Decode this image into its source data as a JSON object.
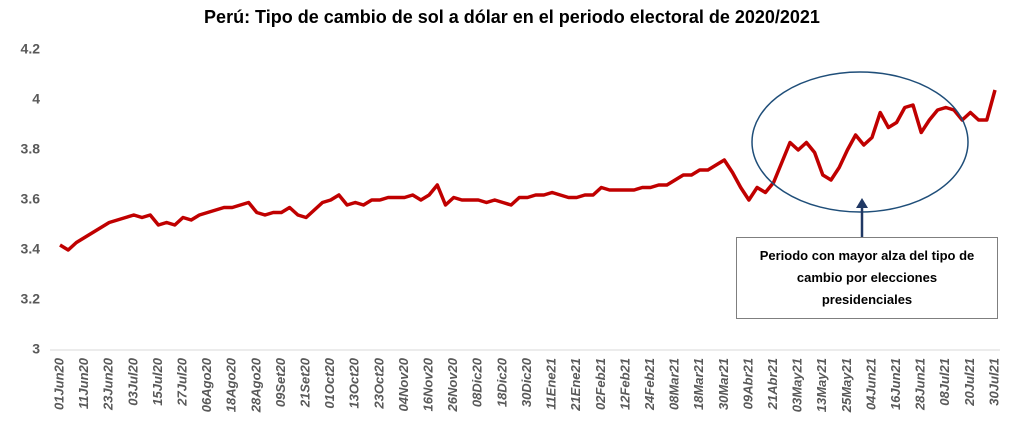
{
  "chart_data": {
    "type": "line",
    "title": "Perú: Tipo de cambio de sol a dólar en el periodo electoral de 2020/2021",
    "categories": [
      "01Jun20",
      null,
      null,
      "11Jun20",
      null,
      null,
      "23Jun20",
      null,
      null,
      "03Jul20",
      null,
      null,
      "15Jul20",
      null,
      null,
      "27Jul20",
      null,
      null,
      "06Ago20",
      null,
      null,
      "18Ago20",
      null,
      null,
      "28Ago20",
      null,
      null,
      "09Set20",
      null,
      null,
      "21Set20",
      null,
      null,
      "01Oct20",
      null,
      null,
      "13Oct20",
      null,
      null,
      "23Oct20",
      null,
      null,
      "04Nov20",
      null,
      null,
      "16Nov20",
      null,
      null,
      "26Nov20",
      null,
      null,
      "08Dic20",
      null,
      null,
      "18Dic20",
      null,
      null,
      "30Dic20",
      null,
      null,
      "11Ene21",
      null,
      null,
      "21Ene21",
      null,
      null,
      "02Feb21",
      null,
      null,
      "12Feb21",
      null,
      null,
      "24Feb21",
      null,
      null,
      "08Mar21",
      null,
      null,
      "18Mar21",
      null,
      null,
      "30Mar21",
      null,
      null,
      "09Abr21",
      null,
      null,
      "21Abr21",
      null,
      null,
      "03May21",
      null,
      null,
      "13May21",
      null,
      null,
      "25May21",
      null,
      null,
      "04Jun21",
      null,
      null,
      "16Jun21",
      null,
      null,
      "28Jun21",
      null,
      null,
      "08Jul21",
      null,
      null,
      "20Jul21",
      null,
      null,
      "30Jul21"
    ],
    "series": [
      {
        "name": "Tipo de cambio",
        "color": "#c00000",
        "values": [
          3.42,
          3.4,
          3.43,
          3.45,
          3.47,
          3.49,
          3.51,
          3.52,
          3.53,
          3.54,
          3.53,
          3.54,
          3.5,
          3.51,
          3.5,
          3.53,
          3.52,
          3.54,
          3.55,
          3.56,
          3.57,
          3.57,
          3.58,
          3.59,
          3.55,
          3.54,
          3.55,
          3.55,
          3.57,
          3.54,
          3.53,
          3.56,
          3.59,
          3.6,
          3.62,
          3.58,
          3.59,
          3.58,
          3.6,
          3.6,
          3.61,
          3.61,
          3.61,
          3.62,
          3.6,
          3.62,
          3.66,
          3.58,
          3.61,
          3.6,
          3.6,
          3.6,
          3.59,
          3.6,
          3.59,
          3.58,
          3.61,
          3.61,
          3.62,
          3.62,
          3.63,
          3.62,
          3.61,
          3.61,
          3.62,
          3.62,
          3.65,
          3.64,
          3.64,
          3.64,
          3.64,
          3.65,
          3.65,
          3.66,
          3.66,
          3.68,
          3.7,
          3.7,
          3.72,
          3.72,
          3.74,
          3.76,
          3.71,
          3.65,
          3.6,
          3.65,
          3.63,
          3.67,
          3.75,
          3.83,
          3.8,
          3.83,
          3.79,
          3.7,
          3.68,
          3.73,
          3.8,
          3.86,
          3.82,
          3.85,
          3.95,
          3.89,
          3.91,
          3.97,
          3.98,
          3.87,
          3.92,
          3.96,
          3.97,
          3.96,
          3.92,
          3.95,
          3.92,
          3.92,
          4.04
        ]
      }
    ],
    "ylim": [
      3,
      4.2
    ],
    "yticks": [
      3,
      3.2,
      3.4,
      3.6,
      3.8,
      4,
      4.2
    ],
    "annotation": "Periodo con mayor alza del tipo de cambio por elecciones presidenciales"
  }
}
